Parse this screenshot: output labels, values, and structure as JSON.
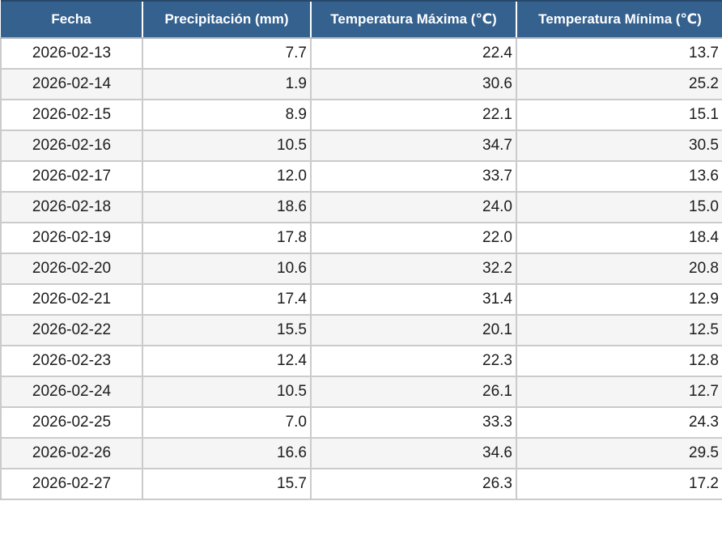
{
  "table": {
    "columns": [
      {
        "key": "fecha",
        "label": "Fecha"
      },
      {
        "key": "precipitacion-mm",
        "label": "Precipitación (mm)"
      },
      {
        "key": "temperatura-maxima",
        "label": "Temperatura Máxima (℃)"
      },
      {
        "key": "temperatura-minima",
        "label": "Temperatura Mínima (℃)"
      }
    ],
    "rows": [
      [
        "2026-02-13",
        "7.7",
        "22.4",
        "13.7"
      ],
      [
        "2026-02-14",
        "1.9",
        "30.6",
        "25.2"
      ],
      [
        "2026-02-15",
        "8.9",
        "22.1",
        "15.1"
      ],
      [
        "2026-02-16",
        "10.5",
        "34.7",
        "30.5"
      ],
      [
        "2026-02-17",
        "12.0",
        "33.7",
        "13.6"
      ],
      [
        "2026-02-18",
        "18.6",
        "24.0",
        "15.0"
      ],
      [
        "2026-02-19",
        "17.8",
        "22.0",
        "18.4"
      ],
      [
        "2026-02-20",
        "10.6",
        "32.2",
        "20.8"
      ],
      [
        "2026-02-21",
        "17.4",
        "31.4",
        "12.9"
      ],
      [
        "2026-02-22",
        "15.5",
        "20.1",
        "12.5"
      ],
      [
        "2026-02-23",
        "12.4",
        "22.3",
        "12.8"
      ],
      [
        "2026-02-24",
        "10.5",
        "26.1",
        "12.7"
      ],
      [
        "2026-02-25",
        "7.0",
        "33.3",
        "24.3"
      ],
      [
        "2026-02-26",
        "16.6",
        "34.6",
        "29.5"
      ],
      [
        "2026-02-27",
        "15.7",
        "26.3",
        "17.2"
      ]
    ]
  },
  "colors": {
    "header_background": "#35618f",
    "header_text": "#ffffff",
    "header_top_border": "#27476b",
    "header_underline": "#b3bac3",
    "grid_line": "#cbcbcb",
    "row_alt_background": "#f5f5f6",
    "body_text": "#1c1c1c"
  },
  "chart_data": {
    "type": "table",
    "title": "",
    "columns": [
      "Fecha",
      "Precipitación (mm)",
      "Temperatura Máxima (℃)",
      "Temperatura Mínima (℃)"
    ],
    "x": [
      "2026-02-13",
      "2026-02-14",
      "2026-02-15",
      "2026-02-16",
      "2026-02-17",
      "2026-02-18",
      "2026-02-19",
      "2026-02-20",
      "2026-02-21",
      "2026-02-22",
      "2026-02-23",
      "2026-02-24",
      "2026-02-25",
      "2026-02-26",
      "2026-02-27"
    ],
    "series": [
      {
        "name": "Precipitación (mm)",
        "values": [
          7.7,
          1.9,
          8.9,
          10.5,
          12.0,
          18.6,
          17.8,
          10.6,
          17.4,
          15.5,
          12.4,
          10.5,
          7.0,
          16.6,
          15.7
        ]
      },
      {
        "name": "Temperatura Máxima (℃)",
        "values": [
          22.4,
          30.6,
          22.1,
          34.7,
          33.7,
          24.0,
          22.0,
          32.2,
          31.4,
          20.1,
          22.3,
          26.1,
          33.3,
          34.6,
          26.3
        ]
      },
      {
        "name": "Temperatura Mínima (℃)",
        "values": [
          13.7,
          25.2,
          15.1,
          30.5,
          13.6,
          15.0,
          18.4,
          20.8,
          12.9,
          12.5,
          12.8,
          12.7,
          24.3,
          29.5,
          17.2
        ]
      }
    ]
  }
}
